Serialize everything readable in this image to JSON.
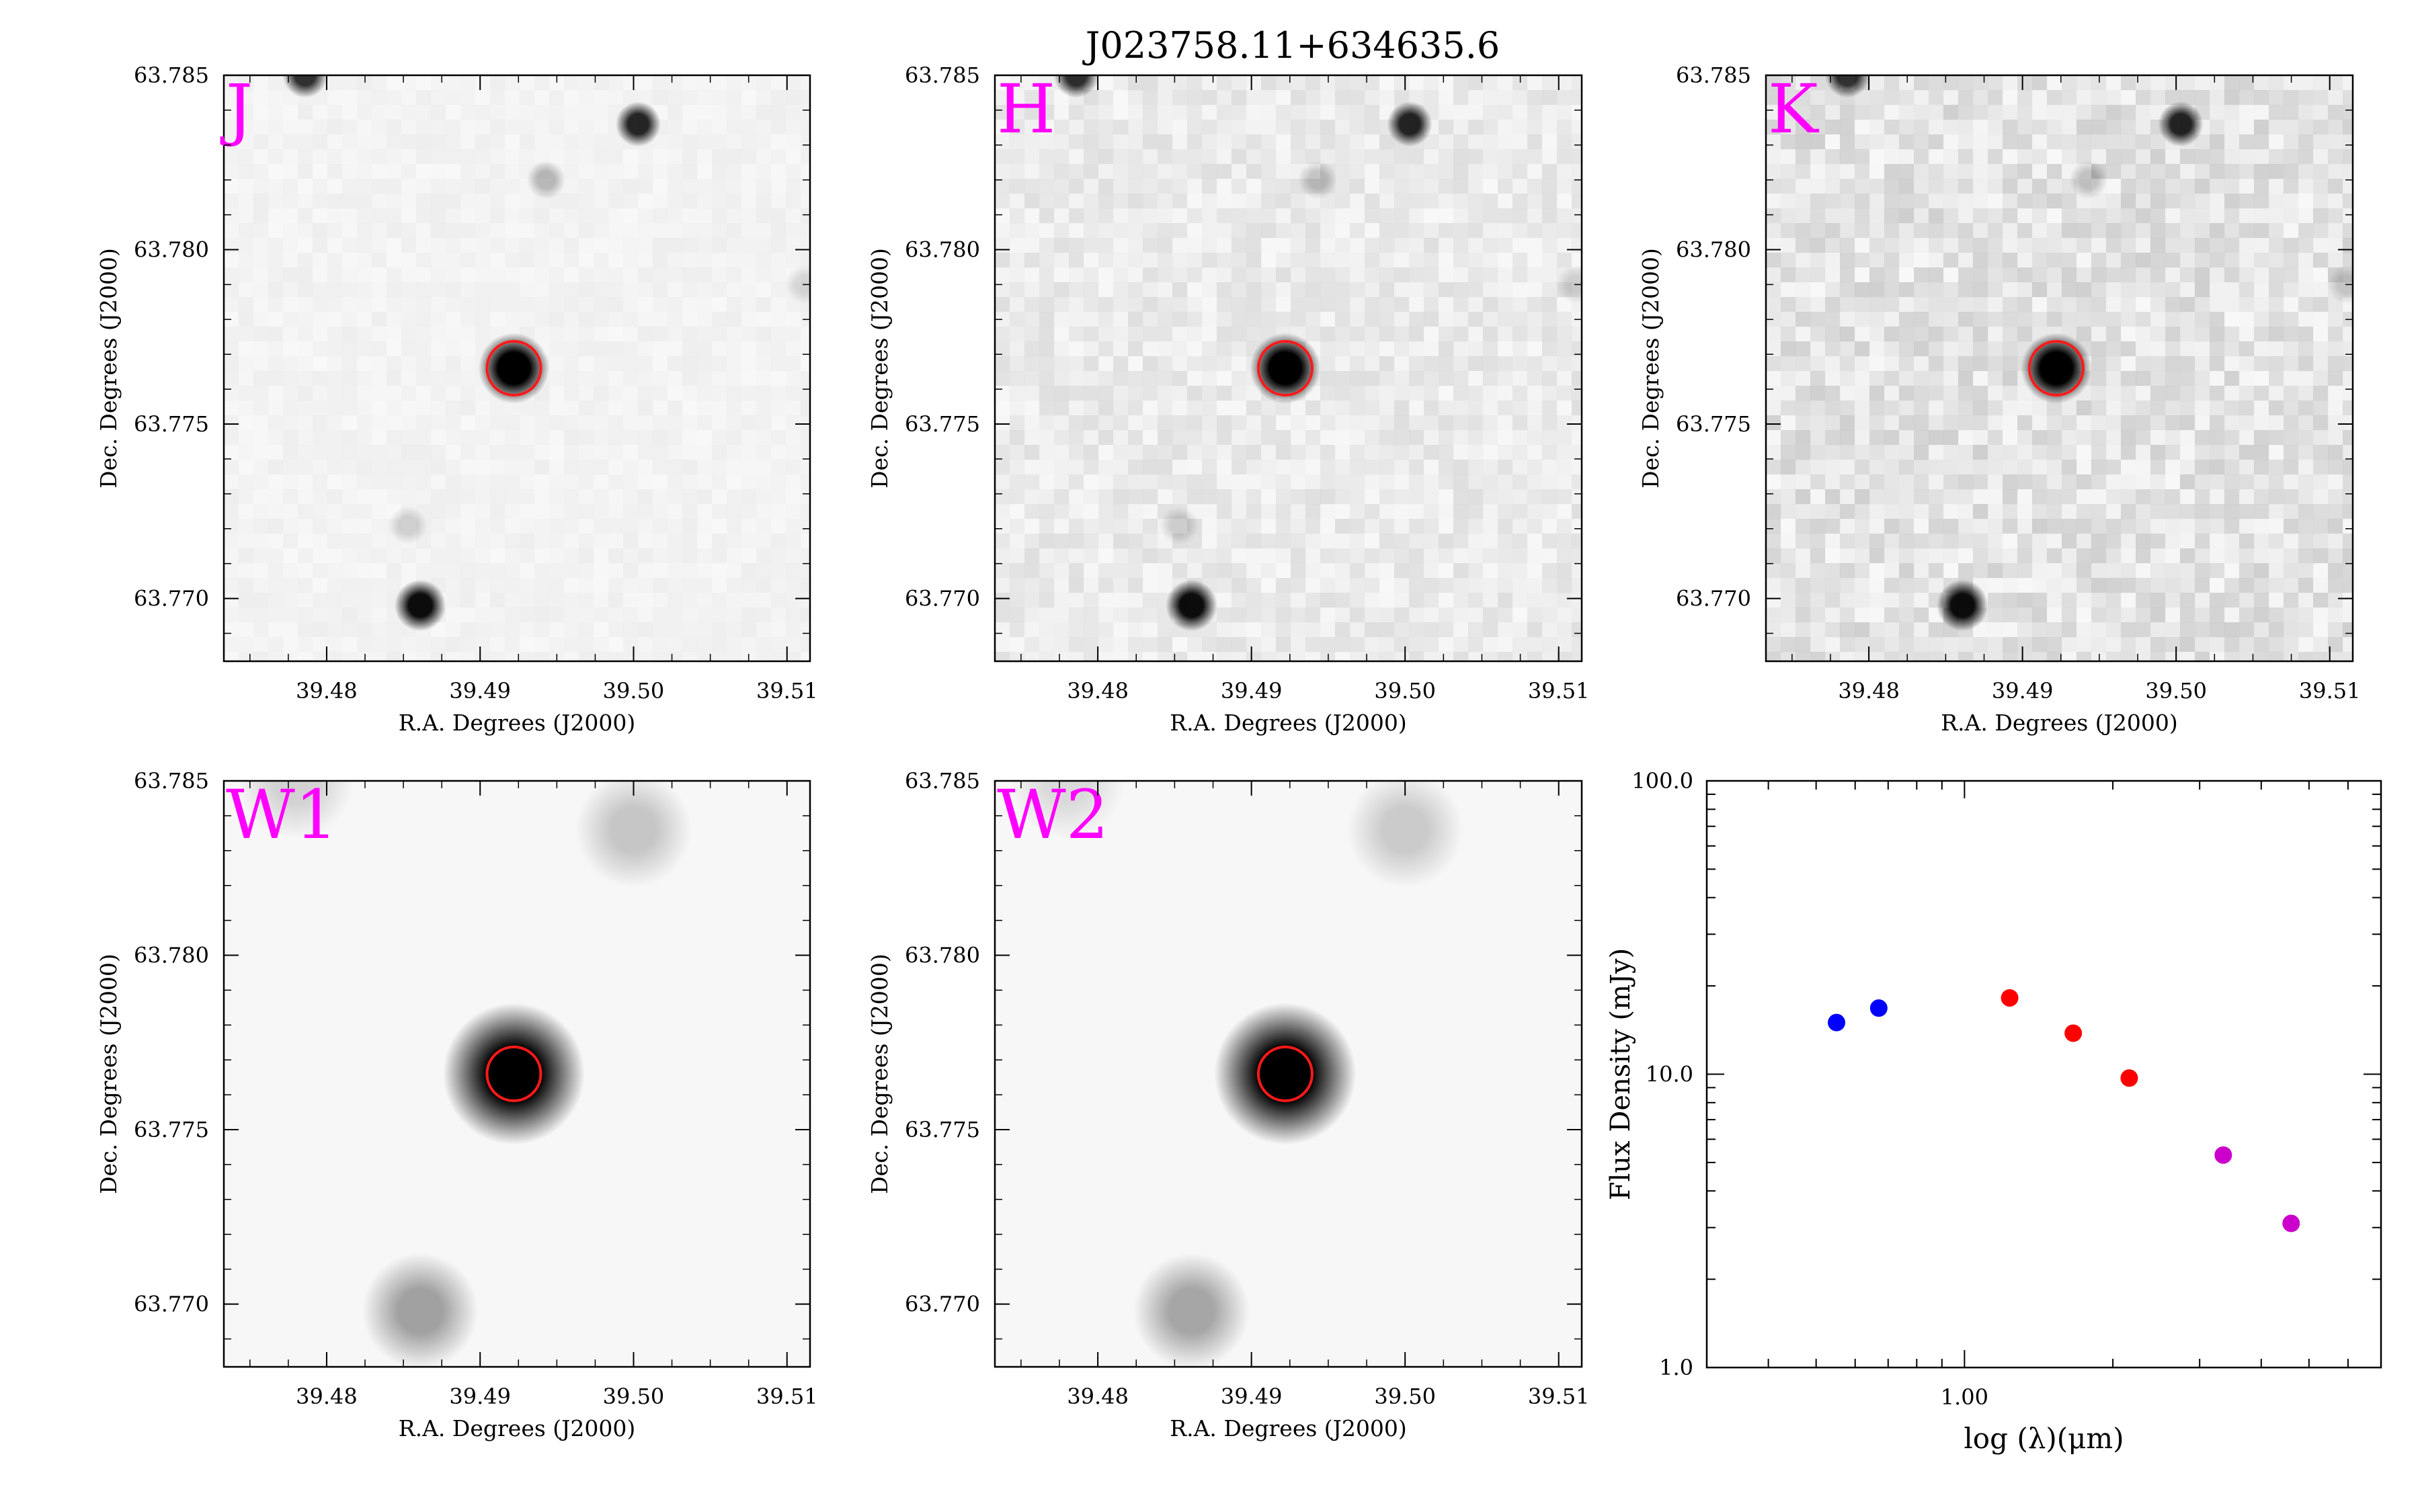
{
  "figure": {
    "title": "J023758.11+634635.6"
  },
  "colors": {
    "band_label": "#ff00ff",
    "aperture": "#ff1a1a",
    "axis": "#000000",
    "star": "#000000",
    "background": "#f7f7f7"
  },
  "chart_data": [
    {
      "type": "image",
      "panel": "J",
      "band_label": "J",
      "xlabel": "R.A. Degrees (J2000)",
      "ylabel": "Dec. Degrees (J2000)",
      "xlim": [
        39.4733,
        39.5115
      ],
      "ylim": [
        63.7682,
        63.785
      ],
      "xticks": [
        "39.48",
        "39.49",
        "39.50",
        "39.51"
      ],
      "yticks": [
        "63.770",
        "63.775",
        "63.780",
        "63.785"
      ],
      "target": {
        "ra": 39.4922,
        "dec": 63.7766
      },
      "sources": [
        {
          "ra": 39.4922,
          "dec": 63.7766,
          "strength": 1.0,
          "width": 0.0011
        },
        {
          "ra": 39.4861,
          "dec": 63.7698,
          "strength": 0.95,
          "width": 0.0008
        },
        {
          "ra": 39.5003,
          "dec": 63.7836,
          "strength": 0.85,
          "width": 0.0007
        },
        {
          "ra": 39.4786,
          "dec": 63.785,
          "strength": 0.8,
          "width": 0.0007
        },
        {
          "ra": 39.4943,
          "dec": 63.782,
          "strength": 0.25,
          "width": 0.0006
        },
        {
          "ra": 39.4853,
          "dec": 63.7721,
          "strength": 0.15,
          "width": 0.0006
        },
        {
          "ra": 39.5111,
          "dec": 63.779,
          "strength": 0.12,
          "width": 0.0006
        }
      ]
    },
    {
      "type": "image",
      "panel": "H",
      "band_label": "H",
      "xlabel": "R.A. Degrees (J2000)",
      "ylabel": "Dec. Degrees (J2000)",
      "xlim": [
        39.4733,
        39.5115
      ],
      "ylim": [
        63.7682,
        63.785
      ],
      "xticks": [
        "39.48",
        "39.49",
        "39.50",
        "39.51"
      ],
      "yticks": [
        "63.770",
        "63.775",
        "63.780",
        "63.785"
      ],
      "target": {
        "ra": 39.4922,
        "dec": 63.7766
      },
      "sources": [
        {
          "ra": 39.4922,
          "dec": 63.7766,
          "strength": 1.0,
          "width": 0.0011
        },
        {
          "ra": 39.4861,
          "dec": 63.7698,
          "strength": 0.95,
          "width": 0.0008
        },
        {
          "ra": 39.5003,
          "dec": 63.7836,
          "strength": 0.85,
          "width": 0.0007
        },
        {
          "ra": 39.4786,
          "dec": 63.785,
          "strength": 0.8,
          "width": 0.0007
        },
        {
          "ra": 39.4943,
          "dec": 63.782,
          "strength": 0.2,
          "width": 0.0006
        },
        {
          "ra": 39.4853,
          "dec": 63.7721,
          "strength": 0.15,
          "width": 0.0006
        },
        {
          "ra": 39.5111,
          "dec": 63.779,
          "strength": 0.12,
          "width": 0.0006
        }
      ]
    },
    {
      "type": "image",
      "panel": "K",
      "band_label": "K",
      "xlabel": "R.A. Degrees (J2000)",
      "ylabel": "Dec. Degrees (J2000)",
      "xlim": [
        39.4733,
        39.5115
      ],
      "ylim": [
        63.7682,
        63.785
      ],
      "xticks": [
        "39.48",
        "39.49",
        "39.50",
        "39.51"
      ],
      "yticks": [
        "63.770",
        "63.775",
        "63.780",
        "63.785"
      ],
      "target": {
        "ra": 39.4922,
        "dec": 63.7766
      },
      "sources": [
        {
          "ra": 39.4922,
          "dec": 63.7766,
          "strength": 1.0,
          "width": 0.0011
        },
        {
          "ra": 39.4861,
          "dec": 63.7698,
          "strength": 0.95,
          "width": 0.0008
        },
        {
          "ra": 39.5003,
          "dec": 63.7836,
          "strength": 0.85,
          "width": 0.0007
        },
        {
          "ra": 39.4786,
          "dec": 63.785,
          "strength": 0.8,
          "width": 0.0007
        },
        {
          "ra": 39.4943,
          "dec": 63.782,
          "strength": 0.2,
          "width": 0.0006
        },
        {
          "ra": 39.5111,
          "dec": 63.779,
          "strength": 0.15,
          "width": 0.0006
        }
      ]
    },
    {
      "type": "image",
      "panel": "W1",
      "band_label": "W1",
      "xlabel": "R.A. Degrees (J2000)",
      "ylabel": "Dec. Degrees (J2000)",
      "xlim": [
        39.4733,
        39.5115
      ],
      "ylim": [
        63.7682,
        63.785
      ],
      "xticks": [
        "39.48",
        "39.49",
        "39.50",
        "39.51"
      ],
      "yticks": [
        "63.770",
        "63.775",
        "63.780",
        "63.785"
      ],
      "target": {
        "ra": 39.4922,
        "dec": 63.7766
      },
      "sources": [
        {
          "ra": 39.4922,
          "dec": 63.7766,
          "strength": 1.0,
          "width": 0.0022
        },
        {
          "ra": 39.4861,
          "dec": 63.7698,
          "strength": 0.35,
          "width": 0.0018
        },
        {
          "ra": 39.5,
          "dec": 63.7836,
          "strength": 0.2,
          "width": 0.0018
        },
        {
          "ra": 39.478,
          "dec": 63.785,
          "strength": 0.15,
          "width": 0.0018
        }
      ]
    },
    {
      "type": "image",
      "panel": "W2",
      "band_label": "W2",
      "xlabel": "R.A. Degrees (J2000)",
      "ylabel": "Dec. Degrees (J2000)",
      "xlim": [
        39.4733,
        39.5115
      ],
      "ylim": [
        63.7682,
        63.785
      ],
      "xticks": [
        "39.48",
        "39.49",
        "39.50",
        "39.51"
      ],
      "yticks": [
        "63.770",
        "63.775",
        "63.780",
        "63.785"
      ],
      "target": {
        "ra": 39.4922,
        "dec": 63.7766
      },
      "sources": [
        {
          "ra": 39.4922,
          "dec": 63.7766,
          "strength": 1.0,
          "width": 0.0022
        },
        {
          "ra": 39.4861,
          "dec": 63.7698,
          "strength": 0.33,
          "width": 0.0018
        },
        {
          "ra": 39.5,
          "dec": 63.7836,
          "strength": 0.18,
          "width": 0.0018
        },
        {
          "ra": 39.478,
          "dec": 63.785,
          "strength": 0.12,
          "width": 0.0018
        }
      ]
    },
    {
      "type": "scatter",
      "panel": "SED",
      "xscale": "log",
      "yscale": "log",
      "xlabel": "log (λ)(μm)",
      "ylabel": "Flux Density (mJy)",
      "xlim": [
        0.3,
        7.0
      ],
      "ylim": [
        1.0,
        100.0
      ],
      "xticks": [
        1.0
      ],
      "xticklabels": [
        "1.00"
      ],
      "yticks": [
        1.0,
        10.0,
        100.0
      ],
      "yticklabels": [
        "1.0",
        "10.0",
        "100.0"
      ],
      "series": [
        {
          "color": "#0000ff",
          "x": [
            0.55,
            0.67
          ],
          "y": [
            15.0,
            16.8
          ]
        },
        {
          "color": "#ff0000",
          "x": [
            1.235,
            1.662,
            2.159
          ],
          "y": [
            18.2,
            13.8,
            9.7
          ]
        },
        {
          "color": "#cc00cc",
          "x": [
            3.35,
            4.6
          ],
          "y": [
            5.3,
            3.1
          ]
        }
      ]
    }
  ]
}
